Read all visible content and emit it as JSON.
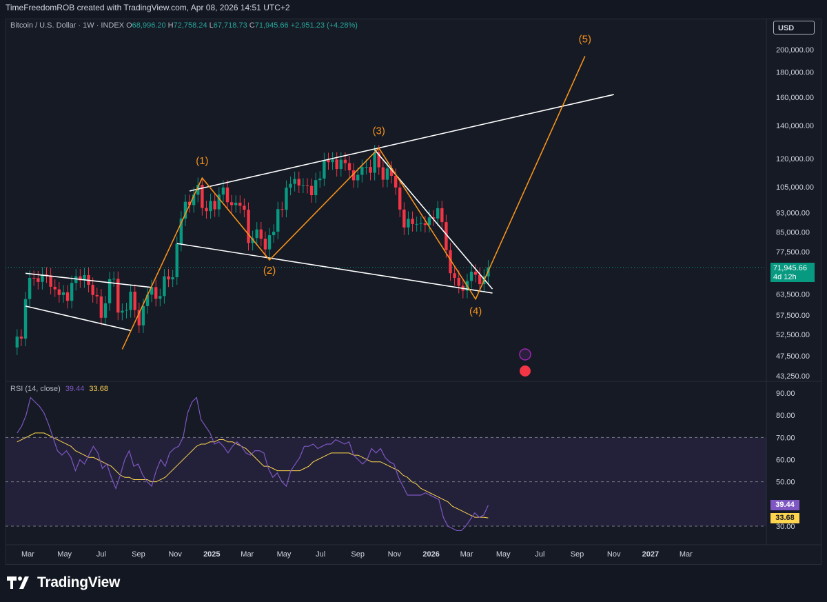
{
  "header": {
    "attribution": "TimeFreedomROB created with TradingView.com, Apr 08, 2026 14:51 UTC+2"
  },
  "legend": {
    "symbol": "Bitcoin / U.S. Dollar · 1W · INDEX",
    "open_label": "O",
    "open": "68,996.20",
    "high_label": "H",
    "high": "72,758.24",
    "low_label": "L",
    "low": "67,718.73",
    "close_label": "C",
    "close": "71,945.66",
    "change": "+2,951.23 (+4.28%)"
  },
  "currency_button": "USD",
  "price_badge": {
    "price": "71,945.66",
    "countdown": "4d 12h"
  },
  "rsi": {
    "label": "RSI (14, close)",
    "value": "39.44",
    "ma_value": "33.68"
  },
  "footer": {
    "brand": "TradingView"
  },
  "colors": {
    "up": "#089981",
    "down": "#f23645",
    "wave": "#f7931a",
    "rsi": "#7e57c2",
    "rsi_ma": "#ffd54f",
    "channel": "#ffffff"
  },
  "chart_data": [
    {
      "type": "candlestick",
      "title": "Bitcoin / U.S. Dollar · 1W · INDEX",
      "y_scale": "log",
      "y_ticks": [
        {
          "v": 200000,
          "label": "200,000.00"
        },
        {
          "v": 180000,
          "label": "180,000.00"
        },
        {
          "v": 160000,
          "label": "160,000.00"
        },
        {
          "v": 140000,
          "label": "140,000.00"
        },
        {
          "v": 120000,
          "label": "120,000.00"
        },
        {
          "v": 105000,
          "label": "105,000.00"
        },
        {
          "v": 93000,
          "label": "93,000.00"
        },
        {
          "v": 85000,
          "label": "85,000.00"
        },
        {
          "v": 77500,
          "label": "77,500.00"
        },
        {
          "v": 63500,
          "label": "63,500.00"
        },
        {
          "v": 57500,
          "label": "57,500.00"
        },
        {
          "v": 52500,
          "label": "52,500.00"
        },
        {
          "v": 47500,
          "label": "47,500.00"
        },
        {
          "v": 43250,
          "label": "43,250.00"
        }
      ],
      "x_ticks": [
        {
          "d": "2024-03-01",
          "label": "Mar"
        },
        {
          "d": "2024-05-01",
          "label": "May"
        },
        {
          "d": "2024-07-01",
          "label": "Jul"
        },
        {
          "d": "2024-09-01",
          "label": "Sep"
        },
        {
          "d": "2024-11-01",
          "label": "Nov"
        },
        {
          "d": "2025-01-01",
          "label": "2025",
          "bold": true
        },
        {
          "d": "2025-03-01",
          "label": "Mar"
        },
        {
          "d": "2025-05-01",
          "label": "May"
        },
        {
          "d": "2025-07-01",
          "label": "Jul"
        },
        {
          "d": "2025-09-01",
          "label": "Sep"
        },
        {
          "d": "2025-11-01",
          "label": "Nov"
        },
        {
          "d": "2026-01-01",
          "label": "2026",
          "bold": true
        },
        {
          "d": "2026-03-01",
          "label": "Mar"
        },
        {
          "d": "2026-05-01",
          "label": "May"
        },
        {
          "d": "2026-07-01",
          "label": "Jul"
        },
        {
          "d": "2026-09-01",
          "label": "Sep"
        },
        {
          "d": "2026-11-01",
          "label": "Nov"
        },
        {
          "d": "2027-01-01",
          "label": "2027",
          "bold": true
        },
        {
          "d": "2027-03-01",
          "label": "Mar"
        }
      ],
      "weekly_closes": [
        {
          "d": "2024-02-12",
          "c": 52000
        },
        {
          "d": "2024-02-19",
          "c": 51500
        },
        {
          "d": "2024-02-26",
          "c": 62000
        },
        {
          "d": "2024-03-04",
          "c": 68500
        },
        {
          "d": "2024-03-11",
          "c": 68400
        },
        {
          "d": "2024-03-18",
          "c": 67200
        },
        {
          "d": "2024-03-25",
          "c": 69600
        },
        {
          "d": "2024-04-01",
          "c": 69300
        },
        {
          "d": "2024-04-08",
          "c": 65700
        },
        {
          "d": "2024-04-15",
          "c": 64900
        },
        {
          "d": "2024-04-22",
          "c": 63200
        },
        {
          "d": "2024-04-29",
          "c": 64000
        },
        {
          "d": "2024-05-06",
          "c": 61500
        },
        {
          "d": "2024-05-13",
          "c": 66900
        },
        {
          "d": "2024-05-20",
          "c": 69000
        },
        {
          "d": "2024-05-27",
          "c": 67700
        },
        {
          "d": "2024-06-03",
          "c": 69400
        },
        {
          "d": "2024-06-10",
          "c": 66300
        },
        {
          "d": "2024-06-17",
          "c": 63200
        },
        {
          "d": "2024-06-24",
          "c": 62800
        },
        {
          "d": "2024-07-01",
          "c": 56800
        },
        {
          "d": "2024-07-08",
          "c": 60800
        },
        {
          "d": "2024-07-15",
          "c": 68100
        },
        {
          "d": "2024-07-22",
          "c": 68200
        },
        {
          "d": "2024-07-29",
          "c": 58200
        },
        {
          "d": "2024-08-05",
          "c": 58700
        },
        {
          "d": "2024-08-12",
          "c": 58900
        },
        {
          "d": "2024-08-19",
          "c": 64200
        },
        {
          "d": "2024-08-26",
          "c": 58900
        },
        {
          "d": "2024-09-02",
          "c": 54800
        },
        {
          "d": "2024-09-09",
          "c": 60000
        },
        {
          "d": "2024-09-16",
          "c": 63300
        },
        {
          "d": "2024-09-23",
          "c": 65600
        },
        {
          "d": "2024-09-30",
          "c": 62100
        },
        {
          "d": "2024-10-07",
          "c": 62900
        },
        {
          "d": "2024-10-14",
          "c": 69000
        },
        {
          "d": "2024-10-21",
          "c": 68000
        },
        {
          "d": "2024-10-28",
          "c": 68700
        },
        {
          "d": "2024-11-04",
          "c": 80400
        },
        {
          "d": "2024-11-11",
          "c": 90500
        },
        {
          "d": "2024-11-18",
          "c": 97900
        },
        {
          "d": "2024-11-25",
          "c": 96400
        },
        {
          "d": "2024-12-02",
          "c": 101200
        },
        {
          "d": "2024-12-09",
          "c": 106000
        },
        {
          "d": "2024-12-16",
          "c": 95100
        },
        {
          "d": "2024-12-23",
          "c": 93700
        },
        {
          "d": "2024-12-30",
          "c": 98300
        },
        {
          "d": "2025-01-06",
          "c": 94500
        },
        {
          "d": "2025-01-13",
          "c": 101300
        },
        {
          "d": "2025-01-20",
          "c": 104700
        },
        {
          "d": "2025-01-27",
          "c": 97700
        },
        {
          "d": "2025-02-03",
          "c": 96400
        },
        {
          "d": "2025-02-10",
          "c": 97500
        },
        {
          "d": "2025-02-17",
          "c": 96100
        },
        {
          "d": "2025-02-24",
          "c": 94300
        },
        {
          "d": "2025-03-03",
          "c": 80700
        },
        {
          "d": "2025-03-10",
          "c": 82600
        },
        {
          "d": "2025-03-17",
          "c": 86000
        },
        {
          "d": "2025-03-24",
          "c": 82300
        },
        {
          "d": "2025-03-31",
          "c": 78300
        },
        {
          "d": "2025-04-07",
          "c": 83700
        },
        {
          "d": "2025-04-14",
          "c": 85100
        },
        {
          "d": "2025-04-21",
          "c": 94600
        },
        {
          "d": "2025-04-28",
          "c": 94300
        },
        {
          "d": "2025-05-05",
          "c": 104600
        },
        {
          "d": "2025-05-12",
          "c": 106500
        },
        {
          "d": "2025-05-19",
          "c": 109000
        },
        {
          "d": "2025-05-26",
          "c": 105700
        },
        {
          "d": "2025-06-02",
          "c": 105700
        },
        {
          "d": "2025-06-09",
          "c": 105500
        },
        {
          "d": "2025-06-16",
          "c": 101000
        },
        {
          "d": "2025-06-23",
          "c": 108400
        },
        {
          "d": "2025-06-30",
          "c": 109200
        },
        {
          "d": "2025-07-07",
          "c": 119100
        },
        {
          "d": "2025-07-14",
          "c": 117900
        },
        {
          "d": "2025-07-21",
          "c": 119400
        },
        {
          "d": "2025-07-28",
          "c": 114200
        },
        {
          "d": "2025-08-04",
          "c": 119300
        },
        {
          "d": "2025-08-11",
          "c": 117400
        },
        {
          "d": "2025-08-18",
          "c": 113500
        },
        {
          "d": "2025-08-25",
          "c": 108300
        },
        {
          "d": "2025-09-01",
          "c": 111100
        },
        {
          "d": "2025-09-08",
          "c": 115300
        },
        {
          "d": "2025-09-15",
          "c": 115300
        },
        {
          "d": "2025-09-22",
          "c": 112200
        },
        {
          "d": "2025-09-29",
          "c": 123500
        },
        {
          "d": "2025-10-06",
          "c": 115100
        },
        {
          "d": "2025-10-13",
          "c": 108600
        },
        {
          "d": "2025-10-20",
          "c": 114500
        },
        {
          "d": "2025-10-27",
          "c": 110600
        },
        {
          "d": "2025-11-03",
          "c": 104700
        },
        {
          "d": "2025-11-10",
          "c": 94400
        },
        {
          "d": "2025-11-17",
          "c": 86800
        },
        {
          "d": "2025-11-24",
          "c": 90400
        },
        {
          "d": "2025-12-01",
          "c": 88200
        },
        {
          "d": "2025-12-08",
          "c": 88200
        },
        {
          "d": "2025-12-15",
          "c": 88500
        },
        {
          "d": "2025-12-22",
          "c": 87800
        },
        {
          "d": "2025-12-29",
          "c": 91000
        },
        {
          "d": "2026-01-05",
          "c": 90500
        },
        {
          "d": "2026-01-12",
          "c": 95000
        },
        {
          "d": "2026-01-19",
          "c": 89000
        },
        {
          "d": "2026-01-26",
          "c": 78000
        },
        {
          "d": "2026-02-02",
          "c": 70000
        },
        {
          "d": "2026-02-09",
          "c": 68500
        },
        {
          "d": "2026-02-16",
          "c": 66000
        },
        {
          "d": "2026-02-23",
          "c": 64500
        },
        {
          "d": "2026-03-02",
          "c": 67500
        },
        {
          "d": "2026-03-09",
          "c": 70500
        },
        {
          "d": "2026-03-16",
          "c": 69500
        },
        {
          "d": "2026-03-23",
          "c": 66500
        },
        {
          "d": "2026-03-30",
          "c": 68996.2
        },
        {
          "d": "2026-04-06",
          "c": 71945.66
        }
      ],
      "current_price": 71945.66,
      "elliott_wave_labels": [
        {
          "label": "(1)",
          "d": "2024-12-16",
          "v": 109500
        },
        {
          "label": "(2)",
          "d": "2025-04-07",
          "v": 74500
        },
        {
          "label": "(3)",
          "d": "2025-10-06",
          "v": 126000
        },
        {
          "label": "(4)",
          "d": "2026-03-16",
          "v": 62000
        },
        {
          "label": "(5)",
          "d": "2026-09-14",
          "v": 194000
        }
      ],
      "elliott_wave_path": [
        {
          "d": "2024-08-05",
          "v": 49000
        },
        {
          "d": "2024-12-16",
          "v": 109500
        },
        {
          "d": "2025-04-07",
          "v": 74500
        },
        {
          "d": "2025-10-06",
          "v": 126000
        },
        {
          "d": "2026-03-16",
          "v": 62000
        },
        {
          "d": "2026-09-14",
          "v": 194000
        }
      ]
    },
    {
      "type": "line",
      "title": "RSI (14, close)",
      "y_ticks": [
        90,
        80,
        70,
        60,
        50,
        30
      ],
      "y_tick_labels": [
        "90.00",
        "80.00",
        "70.00",
        "60.00",
        "50.00",
        "30.00"
      ],
      "bands": {
        "upper": 70,
        "middle": 50,
        "lower": 30
      },
      "series": [
        {
          "name": "RSI",
          "values": [
            72,
            75,
            80,
            88,
            86,
            84,
            81,
            76,
            70,
            64,
            62,
            64,
            61,
            55,
            60,
            58,
            62,
            66,
            63,
            56,
            58,
            52,
            47,
            53,
            60,
            64,
            57,
            58,
            53,
            50,
            48,
            55,
            60,
            57,
            63,
            65,
            66,
            70,
            81,
            86,
            88,
            78,
            75,
            72,
            67,
            68,
            66,
            63,
            66,
            68,
            66,
            63,
            62,
            64,
            64,
            63,
            56,
            52,
            54,
            50,
            48,
            55,
            58,
            61,
            66,
            66,
            67,
            65,
            66,
            67,
            67,
            69,
            68,
            67,
            68,
            62,
            60,
            58,
            60,
            65,
            63,
            65,
            61,
            59,
            58,
            52,
            48,
            44,
            44,
            44,
            44,
            45,
            44,
            43,
            42,
            34,
            30,
            29,
            28,
            28,
            30,
            33,
            36,
            34,
            35,
            39.44
          ]
        },
        {
          "name": "MA",
          "values": [
            68,
            69,
            70,
            71,
            72,
            72,
            72,
            71,
            70,
            69,
            68,
            67,
            66,
            64,
            63,
            62,
            61,
            61,
            60,
            59,
            58,
            57,
            55,
            53,
            52,
            52,
            51,
            51,
            51,
            51,
            50,
            50,
            51,
            52,
            54,
            56,
            58,
            60,
            62,
            64,
            66,
            67,
            67,
            68,
            68,
            69,
            69,
            68,
            68,
            67,
            66,
            65,
            63,
            61,
            59,
            57,
            57,
            56,
            55,
            55,
            55,
            55,
            55,
            55,
            56,
            57,
            59,
            60,
            61,
            62,
            63,
            63,
            63,
            63,
            63,
            62,
            62,
            61,
            60,
            59,
            59,
            59,
            58,
            57,
            56,
            55,
            53,
            52,
            50,
            49,
            47,
            46,
            45,
            44,
            43,
            42,
            41,
            39,
            38,
            37,
            36,
            35,
            34,
            34,
            34,
            33.68
          ]
        }
      ]
    }
  ]
}
